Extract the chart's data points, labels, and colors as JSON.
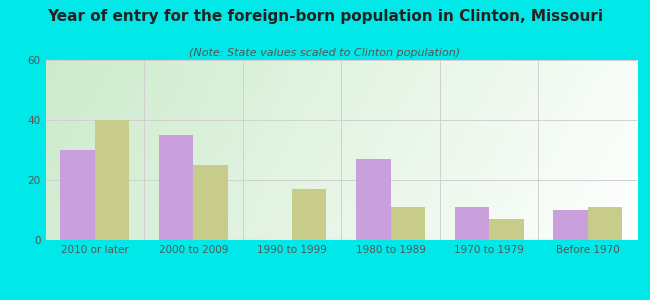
{
  "title": "Year of entry for the foreign-born population in Clinton, Missouri",
  "subtitle": "(Note: State values scaled to Clinton population)",
  "categories": [
    "2010 or later",
    "2000 to 2009",
    "1990 to 1999",
    "1980 to 1989",
    "1970 to 1979",
    "Before 1970"
  ],
  "clinton_values": [
    30,
    35,
    0,
    27,
    11,
    10
  ],
  "missouri_values": [
    40,
    25,
    17,
    11,
    7,
    11
  ],
  "clinton_color": "#c9a0dc",
  "missouri_color": "#c8cc8a",
  "ylim": [
    0,
    60
  ],
  "yticks": [
    0,
    20,
    40,
    60
  ],
  "background_outer": "#00e8e8",
  "grid_color": "#d0d0d0",
  "bar_width": 0.35,
  "title_fontsize": 11,
  "subtitle_fontsize": 8,
  "tick_fontsize": 7.5,
  "legend_fontsize": 9,
  "title_color": "#222222",
  "subtitle_color": "#555555",
  "tick_color": "#555555"
}
